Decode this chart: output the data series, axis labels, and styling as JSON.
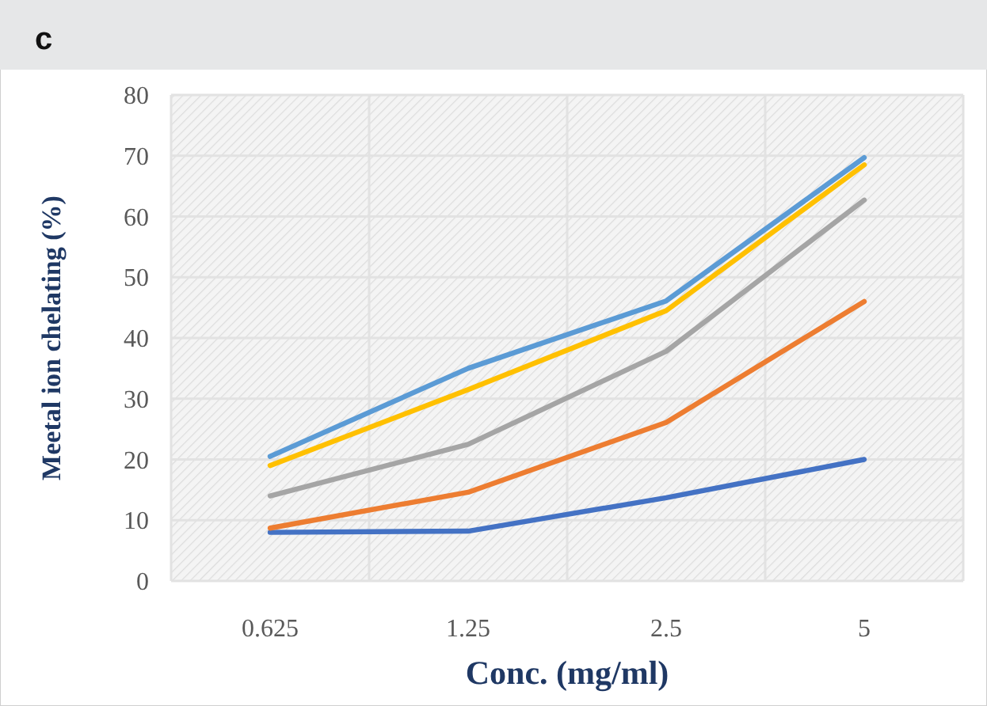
{
  "chart_data": {
    "type": "line",
    "title": "c",
    "xlabel": "Conc. (mg/ml)",
    "ylabel": "Meetal ion chelating (%)",
    "categories": [
      "0.625",
      "1.25",
      "2.5",
      "5"
    ],
    "series": [
      {
        "color": "#4472c4",
        "values": [
          8.0,
          8.2,
          13.7,
          20.0
        ]
      },
      {
        "color": "#ed7d31",
        "values": [
          8.7,
          14.6,
          26.1,
          46.0
        ]
      },
      {
        "color": "#a5a5a5",
        "values": [
          14.0,
          22.5,
          37.8,
          62.7
        ]
      },
      {
        "color": "#ffc000",
        "values": [
          19.0,
          31.5,
          44.5,
          68.5
        ]
      },
      {
        "color": "#5b9bd5",
        "values": [
          20.5,
          35.0,
          46.1,
          69.7
        ]
      }
    ],
    "ylim": [
      0,
      80
    ],
    "yticks": [
      0,
      10,
      20,
      30,
      40,
      50,
      60,
      70,
      80
    ],
    "grid": true,
    "marker": "none",
    "line_style": "solid"
  }
}
